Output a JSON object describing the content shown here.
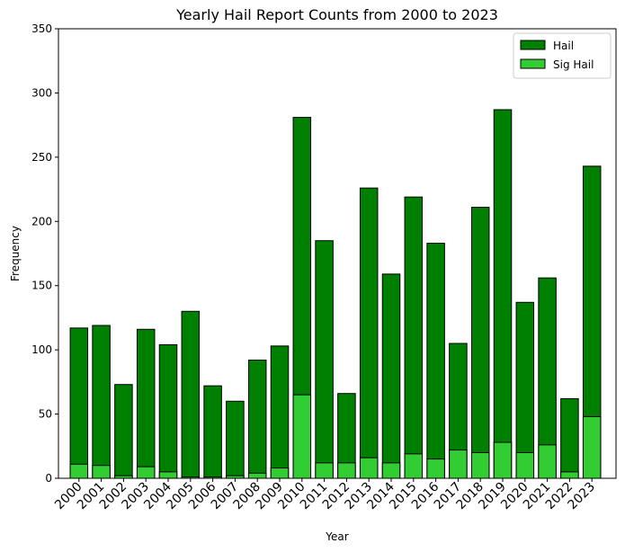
{
  "chart_data": {
    "type": "bar",
    "stacking": "overlay",
    "title": "Yearly Hail Report Counts from 2000 to 2023",
    "xlabel": "Year",
    "ylabel": "Frequency",
    "ylim": [
      0,
      350
    ],
    "yticks": [
      0,
      50,
      100,
      150,
      200,
      250,
      300,
      350
    ],
    "grid": false,
    "legend_position": "top-right",
    "categories": [
      "2000",
      "2001",
      "2002",
      "2003",
      "2004",
      "2005",
      "2006",
      "2007",
      "2008",
      "2009",
      "2010",
      "2011",
      "2012",
      "2013",
      "2014",
      "2015",
      "2016",
      "2017",
      "2018",
      "2019",
      "2020",
      "2021",
      "2022",
      "2023"
    ],
    "series": [
      {
        "name": "Hail",
        "color": "#008000",
        "values": [
          117,
          119,
          73,
          116,
          104,
          130,
          72,
          60,
          92,
          103,
          281,
          185,
          66,
          226,
          159,
          219,
          183,
          105,
          211,
          287,
          137,
          156,
          62,
          243
        ]
      },
      {
        "name": "Sig Hail",
        "color": "#32cd32",
        "values": [
          11,
          10,
          2,
          9,
          5,
          1,
          1,
          2,
          4,
          8,
          65,
          12,
          12,
          16,
          12,
          19,
          15,
          22,
          20,
          28,
          20,
          26,
          5,
          48
        ]
      }
    ]
  }
}
